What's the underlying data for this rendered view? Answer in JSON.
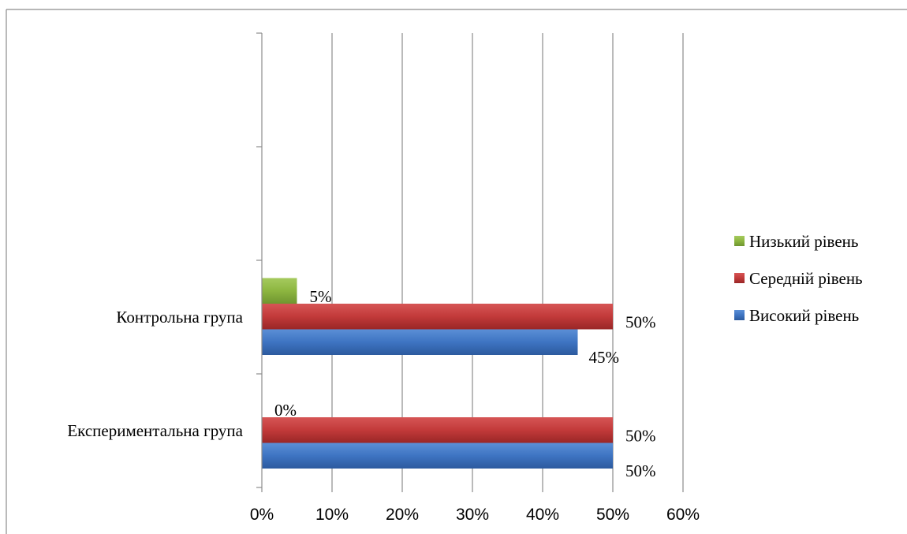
{
  "chart_data": {
    "type": "bar",
    "orientation": "horizontal",
    "categories": [
      "Експериментальна група",
      "Контрольна група"
    ],
    "series": [
      {
        "name": "Високий рівень",
        "values": [
          50,
          45
        ],
        "labels": [
          "50%",
          "45%"
        ],
        "color": "#3e74c2"
      },
      {
        "name": "Середній рівень",
        "values": [
          50,
          50
        ],
        "labels": [
          "50%",
          "50%"
        ],
        "color": "#c23a3a"
      },
      {
        "name": "Низький рівень",
        "values": [
          0,
          5
        ],
        "labels": [
          "0%",
          "5%"
        ],
        "color": "#8db640"
      }
    ],
    "x_ticks": [
      "0%",
      "10%",
      "20%",
      "30%",
      "40%",
      "50%",
      "60%"
    ],
    "xlim": [
      0,
      60
    ],
    "grid": "vertical",
    "legend": "right",
    "title": "",
    "xlabel": "",
    "ylabel": ""
  }
}
